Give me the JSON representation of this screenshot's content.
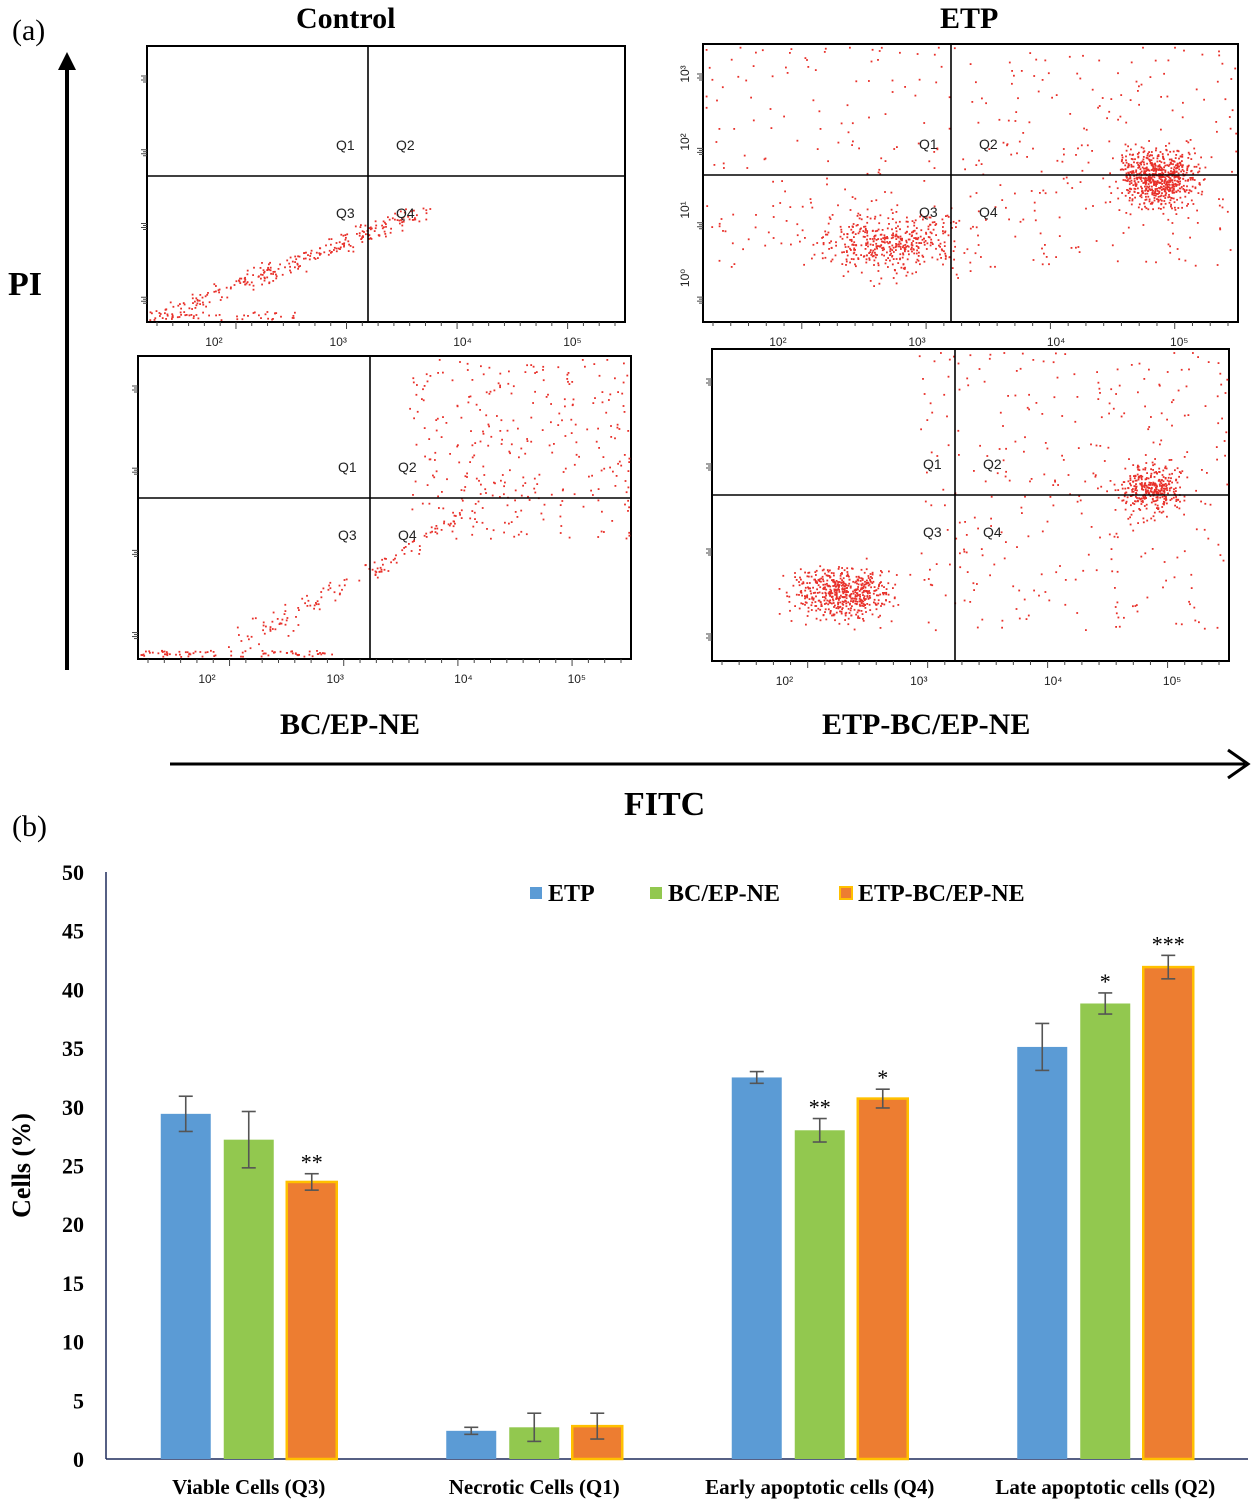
{
  "panel_a": {
    "letter": "(a)",
    "y_axis_label": "PI",
    "x_axis_label": "FITC",
    "plots": [
      {
        "title": "Control",
        "title_pos": "top",
        "quadrants": [
          "Q1",
          "Q2",
          "Q3",
          "Q4"
        ],
        "x_ticks": [
          "10²",
          "10³",
          "10⁴",
          "10⁵"
        ],
        "point_count": 320,
        "distribution": "diagonal-lower-left"
      },
      {
        "title": "ETP",
        "title_pos": "top",
        "quadrants": [
          "Q1",
          "Q2",
          "Q3",
          "Q4"
        ],
        "x_ticks": [
          "10²",
          "10³",
          "10⁴",
          "10⁵"
        ],
        "y_ticks": [
          "10³",
          "10²",
          "10¹",
          "10⁰"
        ],
        "point_count": 1500,
        "distribution": "dense-upper-right"
      },
      {
        "title": "BC/EP-NE",
        "title_pos": "bottom",
        "quadrants": [
          "Q1",
          "Q2",
          "Q3",
          "Q4"
        ],
        "x_ticks": [
          "10²",
          "10³",
          "10⁴",
          "10⁵"
        ],
        "point_count": 520,
        "distribution": "spread-upper-right"
      },
      {
        "title": "ETP-BC/EP-NE",
        "title_pos": "bottom",
        "quadrants": [
          "Q1",
          "Q2",
          "Q3",
          "Q4"
        ],
        "x_ticks": [
          "10²",
          "10³",
          "10⁴",
          "10⁵"
        ],
        "point_count": 1200,
        "distribution": "two-cluster"
      }
    ]
  },
  "chart_data": {
    "type": "bar",
    "panel_letter": "(b)",
    "title": "",
    "xlabel": "",
    "ylabel": "Cells (%)",
    "ylim": [
      0,
      50
    ],
    "yticks": [
      0,
      5,
      10,
      15,
      20,
      25,
      30,
      35,
      40,
      45,
      50
    ],
    "categories": [
      "Viable Cells (Q3)",
      "Necrotic Cells  (Q1)",
      "Early apoptotic cells (Q4)",
      "Late apoptotic cells (Q2)"
    ],
    "series": [
      {
        "name": "ETP",
        "color": "#5b9bd5",
        "values": [
          29.4,
          2.4,
          32.5,
          35.1
        ],
        "errors": [
          1.5,
          0.3,
          0.5,
          2.0
        ],
        "significance": [
          "",
          "",
          "",
          ""
        ]
      },
      {
        "name": "BC/EP-NE",
        "color": "#92c84f",
        "values": [
          27.2,
          2.7,
          28.0,
          38.8
        ],
        "errors": [
          2.4,
          1.2,
          1.0,
          0.9
        ],
        "significance": [
          "",
          "",
          "**",
          "*"
        ]
      },
      {
        "name": "ETP-BC/EP-NE",
        "color": "#ed7d31",
        "border": "#ffc000",
        "values": [
          23.6,
          2.8,
          30.7,
          41.9
        ],
        "errors": [
          0.7,
          1.1,
          0.8,
          1.0
        ],
        "significance": [
          "**",
          "",
          "*",
          "***"
        ]
      }
    ],
    "legend": "top-center",
    "grid": false
  }
}
